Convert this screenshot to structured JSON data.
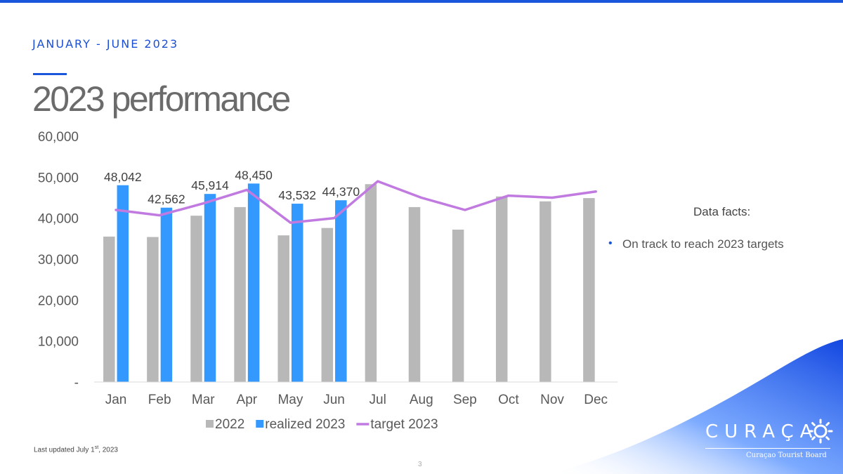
{
  "header": {
    "eyebrow": "JANUARY - JUNE 2023",
    "title": "2023 performance"
  },
  "facts": {
    "title": "Data facts:",
    "items": [
      "On track to reach 2023 targets"
    ]
  },
  "footer": {
    "updated_prefix": "Last updated July 1",
    "updated_sup": "st",
    "updated_suffix": ", 2023",
    "page_number": "3"
  },
  "logo": {
    "word": "CURAÇA",
    "subtitle": "Curaçao Tourist Board"
  },
  "colors": {
    "accent": "#1a56db",
    "series_2022": "#b8b8b8",
    "series_realized": "#3399ff",
    "series_target": "#c07ae0"
  },
  "chart_data": {
    "type": "bar",
    "categories": [
      "Jan",
      "Feb",
      "Mar",
      "Apr",
      "May",
      "Jun",
      "Jul",
      "Aug",
      "Sep",
      "Oct",
      "Nov",
      "Dec"
    ],
    "ylim": [
      0,
      60000
    ],
    "yticks": [
      0,
      10000,
      20000,
      30000,
      40000,
      50000,
      60000
    ],
    "ytick_labels": [
      "-",
      "10,000",
      "20,000",
      "30,000",
      "40,000",
      "50,000",
      "60,000"
    ],
    "legend_position": "bottom",
    "grid": false,
    "series": [
      {
        "name": "2022",
        "kind": "bar",
        "color": "#b8b8b8",
        "values": [
          35500,
          35400,
          40600,
          42700,
          35800,
          37600,
          48300,
          42700,
          37200,
          45300,
          44100,
          44900
        ]
      },
      {
        "name": "realized 2023",
        "kind": "bar",
        "color": "#3399ff",
        "values": [
          48042,
          42562,
          45914,
          48450,
          43532,
          44370,
          null,
          null,
          null,
          null,
          null,
          null
        ],
        "labels": [
          "48,042",
          "42,562",
          "45,914",
          "48,450",
          "43,532",
          "44,370"
        ]
      },
      {
        "name": "target 2023",
        "kind": "line",
        "color": "#c07ae0",
        "values": [
          42000,
          40700,
          43600,
          46900,
          38900,
          40000,
          49000,
          45000,
          42000,
          45500,
          45000,
          46500
        ]
      }
    ]
  }
}
